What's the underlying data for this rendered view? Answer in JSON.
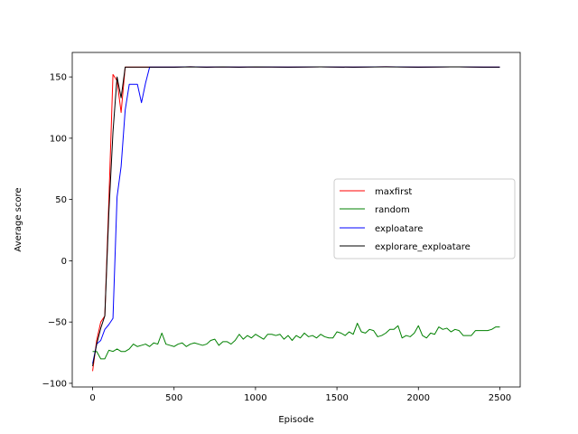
{
  "chart_data": {
    "type": "line",
    "xlabel": "Episode",
    "ylabel": "Average score",
    "xlim": [
      -125,
      2625
    ],
    "ylim": [
      -103,
      170
    ],
    "xticks": [
      0,
      500,
      1000,
      1500,
      2000,
      2500
    ],
    "yticks": [
      -100,
      -50,
      0,
      50,
      100,
      150
    ],
    "grid": false,
    "legend_position": "center-right",
    "series": [
      {
        "name": "maxfirst",
        "color": "#ff0000",
        "x": [
          0,
          25,
          50,
          75,
          100,
          125,
          150,
          175,
          200,
          250,
          300,
          350,
          400,
          450,
          500,
          600,
          700,
          800,
          900,
          1000,
          1200,
          1400,
          1600,
          1800,
          2000,
          2200,
          2400,
          2500
        ],
        "y": [
          -90,
          -65,
          -50,
          -45,
          50,
          152,
          147,
          121,
          158,
          158,
          158,
          158,
          158,
          158,
          158,
          158.3,
          158,
          158.2,
          158,
          158.2,
          158,
          158.2,
          158,
          158.3,
          158,
          158.2,
          158,
          158
        ]
      },
      {
        "name": "random",
        "color": "#008000",
        "x": [
          0,
          25,
          50,
          75,
          100,
          125,
          150,
          175,
          200,
          225,
          250,
          275,
          300,
          325,
          350,
          375,
          400,
          425,
          450,
          475,
          500,
          525,
          550,
          575,
          600,
          625,
          650,
          675,
          700,
          725,
          750,
          775,
          800,
          825,
          850,
          875,
          900,
          925,
          950,
          975,
          1000,
          1025,
          1050,
          1075,
          1100,
          1125,
          1150,
          1175,
          1200,
          1225,
          1250,
          1275,
          1300,
          1325,
          1350,
          1375,
          1400,
          1425,
          1450,
          1475,
          1500,
          1525,
          1550,
          1575,
          1600,
          1625,
          1650,
          1675,
          1700,
          1725,
          1750,
          1775,
          1800,
          1825,
          1850,
          1875,
          1900,
          1925,
          1950,
          1975,
          2000,
          2025,
          2050,
          2075,
          2100,
          2125,
          2150,
          2175,
          2200,
          2225,
          2250,
          2275,
          2300,
          2325,
          2350,
          2375,
          2400,
          2425,
          2450,
          2475,
          2500
        ],
        "y": [
          -74,
          -74,
          -80,
          -80,
          -73,
          -74,
          -72,
          -74,
          -74,
          -72,
          -68,
          -70,
          -69,
          -68,
          -70,
          -67,
          -68,
          -59,
          -68,
          -69,
          -70,
          -68,
          -67,
          -70,
          -68,
          -67,
          -68,
          -69,
          -68,
          -65,
          -64,
          -69,
          -66,
          -66,
          -68,
          -65,
          -60,
          -64,
          -61,
          -63,
          -60,
          -62,
          -64,
          -60,
          -60,
          -61,
          -60,
          -64,
          -61,
          -65,
          -61,
          -63,
          -59,
          -62,
          -61,
          -63,
          -60,
          -62,
          -63,
          -63,
          -58,
          -59,
          -61,
          -58,
          -60,
          -51,
          -58,
          -59,
          -56,
          -57,
          -62,
          -61,
          -59,
          -56,
          -56,
          -53,
          -63,
          -61,
          -62,
          -59,
          -53,
          -61,
          -63,
          -59,
          -60,
          -54,
          -56,
          -55,
          -58,
          -56,
          -57,
          -61,
          -61,
          -61,
          -57,
          -57,
          -57,
          -57,
          -56,
          -54,
          -54
        ]
      },
      {
        "name": "exploatare",
        "color": "#0000ff",
        "x": [
          0,
          25,
          50,
          75,
          100,
          125,
          150,
          175,
          200,
          225,
          250,
          275,
          300,
          325,
          350,
          375,
          400,
          500,
          600,
          700,
          800,
          900,
          1000,
          1200,
          1400,
          1600,
          1800,
          2000,
          2200,
          2400,
          2500
        ],
        "y": [
          -84,
          -68,
          -65,
          -56,
          -52,
          -47,
          52,
          77,
          123,
          144,
          144,
          144,
          129,
          145,
          158,
          158,
          158,
          158,
          158.3,
          158,
          158.2,
          158,
          158.2,
          158,
          158.2,
          158,
          158.3,
          158,
          158.2,
          158,
          158
        ]
      },
      {
        "name": "explorare_exploatare",
        "color": "#000000",
        "x": [
          0,
          25,
          50,
          75,
          100,
          125,
          150,
          175,
          200,
          250,
          300,
          400,
          500,
          600,
          700,
          800,
          900,
          1000,
          1200,
          1400,
          1600,
          1800,
          2000,
          2200,
          2400,
          2500
        ],
        "y": [
          -86,
          -68,
          -55,
          -45,
          40,
          105,
          150,
          133,
          158,
          158,
          158,
          158,
          158,
          158.2,
          158,
          158.2,
          158,
          158.2,
          158,
          158.2,
          158,
          158.2,
          158,
          158.2,
          158,
          158
        ]
      }
    ]
  }
}
